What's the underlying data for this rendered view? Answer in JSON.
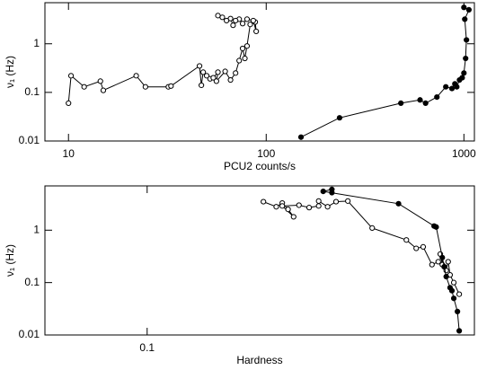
{
  "chart_data": [
    {
      "type": "line",
      "xlabel": "PCU2 counts/s",
      "ylabel": "ν₁ (Hz)",
      "xlog": true,
      "ylog": true,
      "xlim": [
        7.6,
        1130
      ],
      "ylim": [
        0.01,
        7
      ],
      "xticks": [
        10,
        100,
        1000
      ],
      "yticks": [
        0.01,
        0.1,
        1
      ],
      "series": [
        {
          "color": "#000000",
          "marker_fill": "#ffffff",
          "x": [
            10,
            10.3,
            12,
            14.5,
            15,
            22,
            24.5,
            32,
            33,
            46,
            47,
            48,
            50,
            52,
            54,
            57,
            56,
            62,
            66,
            70,
            73,
            76,
            78,
            80,
            83,
            88,
            89,
            86,
            80,
            76,
            73,
            70,
            68,
            66,
            63,
            60,
            57
          ],
          "values": [
            0.06,
            0.22,
            0.13,
            0.17,
            0.11,
            0.22,
            0.13,
            0.13,
            0.135,
            0.35,
            0.14,
            0.26,
            0.22,
            0.19,
            0.2,
            0.26,
            0.17,
            0.27,
            0.18,
            0.25,
            0.45,
            0.8,
            0.5,
            0.9,
            2.5,
            2.8,
            1.8,
            3.0,
            3.2,
            2.6,
            3.2,
            3.0,
            2.4,
            3.3,
            3.0,
            3.5,
            3.8
          ]
        },
        {
          "color": "#000000",
          "marker_fill": "#000000",
          "x": [
            150,
            235,
            480,
            600,
            640,
            730,
            810,
            870,
            900,
            920,
            950,
            980,
            1000,
            1020,
            1030,
            1010,
            1060,
            1000
          ],
          "values": [
            0.012,
            0.03,
            0.06,
            0.07,
            0.06,
            0.08,
            0.13,
            0.12,
            0.15,
            0.13,
            0.18,
            0.2,
            0.25,
            0.5,
            1.2,
            3.2,
            5,
            5.6
          ]
        }
      ]
    },
    {
      "type": "line",
      "xlabel": "Hardness",
      "ylabel": "ν₁ (Hz)",
      "xlog": true,
      "ylog": true,
      "xlim": [
        0.05,
        0.92
      ],
      "ylim": [
        0.01,
        7
      ],
      "xticks": [
        0.1
      ],
      "yticks": [
        0.01,
        0.1,
        1
      ],
      "series": [
        {
          "color": "#000000",
          "marker_fill": "#ffffff",
          "x": [
            0.22,
            0.24,
            0.25,
            0.26,
            0.27,
            0.25,
            0.28,
            0.3,
            0.32,
            0.32,
            0.34,
            0.36,
            0.39,
            0.46,
            0.58,
            0.62,
            0.65,
            0.69,
            0.72,
            0.74,
            0.73,
            0.75,
            0.76,
            0.77,
            0.78,
            0.8,
            0.83
          ],
          "values": [
            3.5,
            2.8,
            3.3,
            2.5,
            1.8,
            2.9,
            3.0,
            2.7,
            2.9,
            3.6,
            2.8,
            3.5,
            3.6,
            1.1,
            0.65,
            0.45,
            0.48,
            0.22,
            0.25,
            0.22,
            0.35,
            0.2,
            0.17,
            0.25,
            0.14,
            0.1,
            0.06
          ]
        },
        {
          "color": "#000000",
          "marker_fill": "#000000",
          "x": [
            0.35,
            0.35,
            0.33,
            0.55,
            0.7,
            0.71,
            0.74,
            0.75,
            0.76,
            0.78,
            0.79,
            0.8,
            0.82,
            0.83
          ],
          "values": [
            5.2,
            6,
            5.5,
            3.2,
            1.2,
            1.15,
            0.3,
            0.2,
            0.13,
            0.08,
            0.07,
            0.05,
            0.028,
            0.012
          ]
        }
      ]
    }
  ]
}
